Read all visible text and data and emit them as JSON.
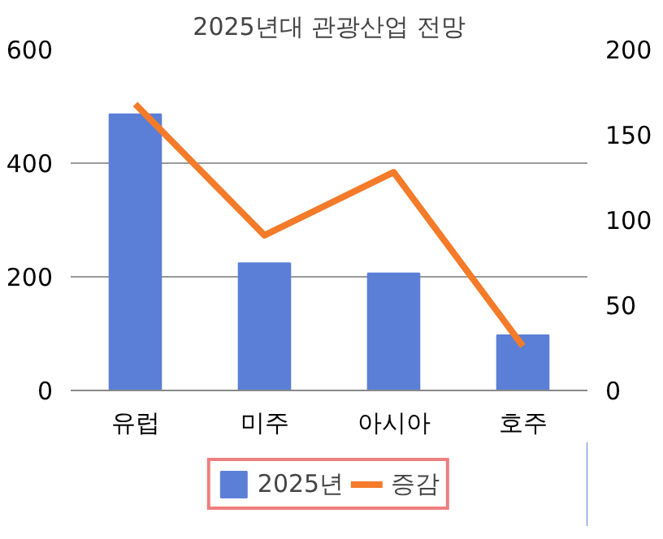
{
  "chart_data": {
    "type": "bar",
    "title": "2025년대 관광산업 전망",
    "categories": [
      "유럽",
      "미주",
      "아시아",
      "호주"
    ],
    "series": [
      {
        "name": "2025년",
        "color": "#5b7fd6",
        "values": [
          486,
          224,
          206,
          97
        ]
      },
      {
        "name": "증감",
        "type": "line",
        "axis": "y2",
        "color": "#f47b2a",
        "values": [
          168,
          91,
          128,
          26
        ]
      }
    ],
    "ylim": [
      0,
      600
    ],
    "yticks": [
      0,
      200,
      400,
      600
    ],
    "y2lim": [
      0,
      200
    ],
    "y2ticks": [
      0,
      50,
      100,
      150,
      200
    ],
    "grid": "y",
    "legend": "bottom"
  }
}
